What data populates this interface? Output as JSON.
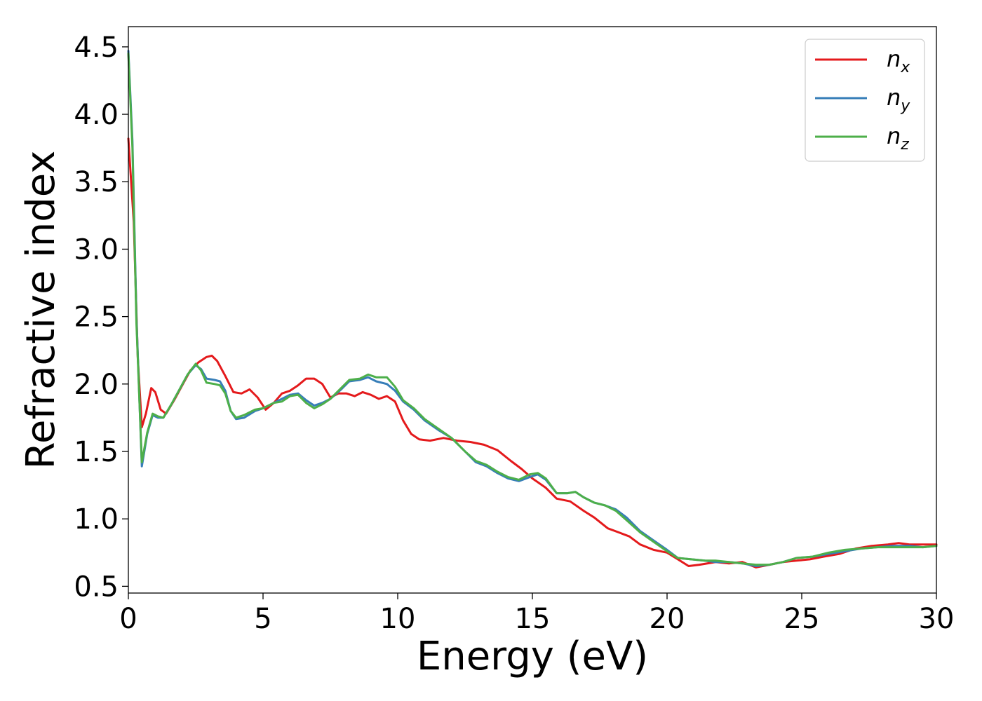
{
  "chart_data": {
    "type": "line",
    "title": "",
    "xlabel": "Energy (eV)",
    "ylabel": "Refractive index",
    "xlim": [
      0,
      30
    ],
    "ylim": [
      0.45,
      4.65
    ],
    "xticks": [
      0,
      5,
      10,
      15,
      20,
      25,
      30
    ],
    "yticks": [
      0.5,
      1.0,
      1.5,
      2.0,
      2.5,
      3.0,
      3.5,
      4.0,
      4.5
    ],
    "xtick_labels": [
      "0",
      "5",
      "10",
      "15",
      "20",
      "25",
      "30"
    ],
    "ytick_labels": [
      "0.5",
      "1.0",
      "1.5",
      "2.0",
      "2.5",
      "3.0",
      "3.5",
      "4.0",
      "4.5"
    ],
    "grid": false,
    "legend_position": "top-right",
    "series": [
      {
        "name": "n",
        "subscript": "x",
        "color": "#e41a1c",
        "points": [
          [
            0,
            3.82
          ],
          [
            0.2,
            3.2
          ],
          [
            0.35,
            2.2
          ],
          [
            0.5,
            1.68
          ],
          [
            0.65,
            1.78
          ],
          [
            0.85,
            1.97
          ],
          [
            1.0,
            1.94
          ],
          [
            1.2,
            1.81
          ],
          [
            1.4,
            1.78
          ],
          [
            1.7,
            1.88
          ],
          [
            2.0,
            1.99
          ],
          [
            2.3,
            2.1
          ],
          [
            2.6,
            2.16
          ],
          [
            2.9,
            2.2
          ],
          [
            3.1,
            2.21
          ],
          [
            3.3,
            2.17
          ],
          [
            3.6,
            2.06
          ],
          [
            3.9,
            1.94
          ],
          [
            4.2,
            1.93
          ],
          [
            4.5,
            1.96
          ],
          [
            4.8,
            1.9
          ],
          [
            5.1,
            1.81
          ],
          [
            5.4,
            1.86
          ],
          [
            5.7,
            1.93
          ],
          [
            6.0,
            1.95
          ],
          [
            6.3,
            1.99
          ],
          [
            6.6,
            2.04
          ],
          [
            6.9,
            2.04
          ],
          [
            7.2,
            2.0
          ],
          [
            7.5,
            1.9
          ],
          [
            7.8,
            1.93
          ],
          [
            8.1,
            1.93
          ],
          [
            8.4,
            1.91
          ],
          [
            8.7,
            1.94
          ],
          [
            9.0,
            1.92
          ],
          [
            9.3,
            1.89
          ],
          [
            9.6,
            1.91
          ],
          [
            9.9,
            1.87
          ],
          [
            10.2,
            1.73
          ],
          [
            10.5,
            1.63
          ],
          [
            10.8,
            1.59
          ],
          [
            11.2,
            1.58
          ],
          [
            11.7,
            1.6
          ],
          [
            12.2,
            1.58
          ],
          [
            12.7,
            1.57
          ],
          [
            13.2,
            1.55
          ],
          [
            13.7,
            1.51
          ],
          [
            14.2,
            1.43
          ],
          [
            14.6,
            1.37
          ],
          [
            15.0,
            1.3
          ],
          [
            15.5,
            1.23
          ],
          [
            15.9,
            1.15
          ],
          [
            16.4,
            1.13
          ],
          [
            16.9,
            1.06
          ],
          [
            17.3,
            1.01
          ],
          [
            17.8,
            0.93
          ],
          [
            18.2,
            0.9
          ],
          [
            18.6,
            0.87
          ],
          [
            19.0,
            0.81
          ],
          [
            19.5,
            0.77
          ],
          [
            20.0,
            0.75
          ],
          [
            20.4,
            0.7
          ],
          [
            20.8,
            0.65
          ],
          [
            21.2,
            0.66
          ],
          [
            21.8,
            0.68
          ],
          [
            22.3,
            0.67
          ],
          [
            22.8,
            0.68
          ],
          [
            23.3,
            0.64
          ],
          [
            23.8,
            0.66
          ],
          [
            24.3,
            0.68
          ],
          [
            24.8,
            0.69
          ],
          [
            25.3,
            0.7
          ],
          [
            25.8,
            0.72
          ],
          [
            26.4,
            0.74
          ],
          [
            27.0,
            0.78
          ],
          [
            27.6,
            0.8
          ],
          [
            28.2,
            0.81
          ],
          [
            28.6,
            0.82
          ],
          [
            29.0,
            0.81
          ],
          [
            29.5,
            0.81
          ],
          [
            30.0,
            0.81
          ]
        ]
      },
      {
        "name": "n",
        "subscript": "y",
        "color": "#377eb8",
        "points": [
          [
            0,
            4.47
          ],
          [
            0.15,
            3.8
          ],
          [
            0.3,
            2.5
          ],
          [
            0.5,
            1.39
          ],
          [
            0.7,
            1.63
          ],
          [
            0.9,
            1.77
          ],
          [
            1.1,
            1.75
          ],
          [
            1.3,
            1.75
          ],
          [
            1.6,
            1.85
          ],
          [
            1.9,
            1.96
          ],
          [
            2.2,
            2.07
          ],
          [
            2.5,
            2.14
          ],
          [
            2.7,
            2.11
          ],
          [
            2.9,
            2.04
          ],
          [
            3.2,
            2.03
          ],
          [
            3.4,
            2.02
          ],
          [
            3.6,
            1.95
          ],
          [
            3.8,
            1.8
          ],
          [
            4.0,
            1.74
          ],
          [
            4.3,
            1.75
          ],
          [
            4.7,
            1.8
          ],
          [
            5.0,
            1.82
          ],
          [
            5.4,
            1.86
          ],
          [
            5.7,
            1.89
          ],
          [
            6.0,
            1.92
          ],
          [
            6.3,
            1.93
          ],
          [
            6.6,
            1.88
          ],
          [
            6.9,
            1.84
          ],
          [
            7.2,
            1.86
          ],
          [
            7.5,
            1.89
          ],
          [
            7.9,
            1.96
          ],
          [
            8.2,
            2.02
          ],
          [
            8.6,
            2.03
          ],
          [
            8.9,
            2.05
          ],
          [
            9.2,
            2.02
          ],
          [
            9.6,
            2.0
          ],
          [
            9.9,
            1.95
          ],
          [
            10.2,
            1.87
          ],
          [
            10.6,
            1.81
          ],
          [
            11.0,
            1.73
          ],
          [
            11.5,
            1.66
          ],
          [
            12.0,
            1.6
          ],
          [
            12.5,
            1.5
          ],
          [
            12.9,
            1.42
          ],
          [
            13.3,
            1.39
          ],
          [
            13.7,
            1.34
          ],
          [
            14.1,
            1.3
          ],
          [
            14.5,
            1.28
          ],
          [
            14.9,
            1.31
          ],
          [
            15.2,
            1.33
          ],
          [
            15.5,
            1.29
          ],
          [
            15.9,
            1.19
          ],
          [
            16.3,
            1.19
          ],
          [
            16.6,
            1.2
          ],
          [
            16.9,
            1.16
          ],
          [
            17.3,
            1.12
          ],
          [
            17.7,
            1.1
          ],
          [
            18.1,
            1.07
          ],
          [
            18.5,
            1.01
          ],
          [
            19.0,
            0.91
          ],
          [
            19.5,
            0.84
          ],
          [
            20.0,
            0.77
          ],
          [
            20.4,
            0.71
          ],
          [
            20.9,
            0.7
          ],
          [
            21.4,
            0.69
          ],
          [
            21.8,
            0.68
          ],
          [
            22.3,
            0.68
          ],
          [
            22.8,
            0.67
          ],
          [
            23.3,
            0.65
          ],
          [
            23.8,
            0.66
          ],
          [
            24.3,
            0.68
          ],
          [
            24.8,
            0.71
          ],
          [
            25.4,
            0.72
          ],
          [
            26.0,
            0.74
          ],
          [
            26.6,
            0.76
          ],
          [
            27.2,
            0.78
          ],
          [
            27.8,
            0.79
          ],
          [
            28.4,
            0.8
          ],
          [
            29.0,
            0.8
          ],
          [
            29.5,
            0.79
          ],
          [
            30.0,
            0.8
          ]
        ]
      },
      {
        "name": "n",
        "subscript": "z",
        "color": "#4daf4a",
        "points": [
          [
            0,
            4.45
          ],
          [
            0.15,
            3.75
          ],
          [
            0.3,
            2.45
          ],
          [
            0.5,
            1.42
          ],
          [
            0.7,
            1.64
          ],
          [
            0.9,
            1.78
          ],
          [
            1.1,
            1.76
          ],
          [
            1.3,
            1.75
          ],
          [
            1.6,
            1.85
          ],
          [
            1.9,
            1.96
          ],
          [
            2.2,
            2.07
          ],
          [
            2.5,
            2.15
          ],
          [
            2.7,
            2.1
          ],
          [
            2.9,
            2.01
          ],
          [
            3.2,
            2.0
          ],
          [
            3.4,
            1.99
          ],
          [
            3.6,
            1.93
          ],
          [
            3.8,
            1.8
          ],
          [
            4.0,
            1.75
          ],
          [
            4.3,
            1.77
          ],
          [
            4.7,
            1.81
          ],
          [
            5.0,
            1.82
          ],
          [
            5.4,
            1.86
          ],
          [
            5.7,
            1.87
          ],
          [
            6.0,
            1.91
          ],
          [
            6.3,
            1.92
          ],
          [
            6.6,
            1.86
          ],
          [
            6.9,
            1.82
          ],
          [
            7.2,
            1.85
          ],
          [
            7.5,
            1.89
          ],
          [
            7.9,
            1.97
          ],
          [
            8.2,
            2.03
          ],
          [
            8.6,
            2.04
          ],
          [
            8.9,
            2.07
          ],
          [
            9.2,
            2.05
          ],
          [
            9.6,
            2.05
          ],
          [
            9.9,
            1.98
          ],
          [
            10.2,
            1.88
          ],
          [
            10.6,
            1.82
          ],
          [
            11.0,
            1.74
          ],
          [
            11.5,
            1.67
          ],
          [
            12.0,
            1.6
          ],
          [
            12.5,
            1.5
          ],
          [
            12.9,
            1.43
          ],
          [
            13.3,
            1.4
          ],
          [
            13.7,
            1.35
          ],
          [
            14.1,
            1.31
          ],
          [
            14.5,
            1.29
          ],
          [
            14.9,
            1.33
          ],
          [
            15.2,
            1.34
          ],
          [
            15.5,
            1.3
          ],
          [
            15.9,
            1.19
          ],
          [
            16.3,
            1.19
          ],
          [
            16.6,
            1.2
          ],
          [
            16.9,
            1.16
          ],
          [
            17.3,
            1.12
          ],
          [
            17.7,
            1.1
          ],
          [
            18.1,
            1.06
          ],
          [
            18.5,
            0.99
          ],
          [
            19.0,
            0.9
          ],
          [
            19.5,
            0.83
          ],
          [
            20.0,
            0.76
          ],
          [
            20.4,
            0.71
          ],
          [
            20.9,
            0.7
          ],
          [
            21.4,
            0.69
          ],
          [
            21.8,
            0.69
          ],
          [
            22.3,
            0.68
          ],
          [
            22.8,
            0.67
          ],
          [
            23.3,
            0.66
          ],
          [
            23.8,
            0.66
          ],
          [
            24.3,
            0.68
          ],
          [
            24.8,
            0.71
          ],
          [
            25.4,
            0.72
          ],
          [
            26.0,
            0.75
          ],
          [
            26.6,
            0.77
          ],
          [
            27.2,
            0.78
          ],
          [
            27.8,
            0.79
          ],
          [
            28.4,
            0.79
          ],
          [
            29.0,
            0.79
          ],
          [
            29.5,
            0.79
          ],
          [
            30.0,
            0.8
          ]
        ]
      }
    ]
  }
}
